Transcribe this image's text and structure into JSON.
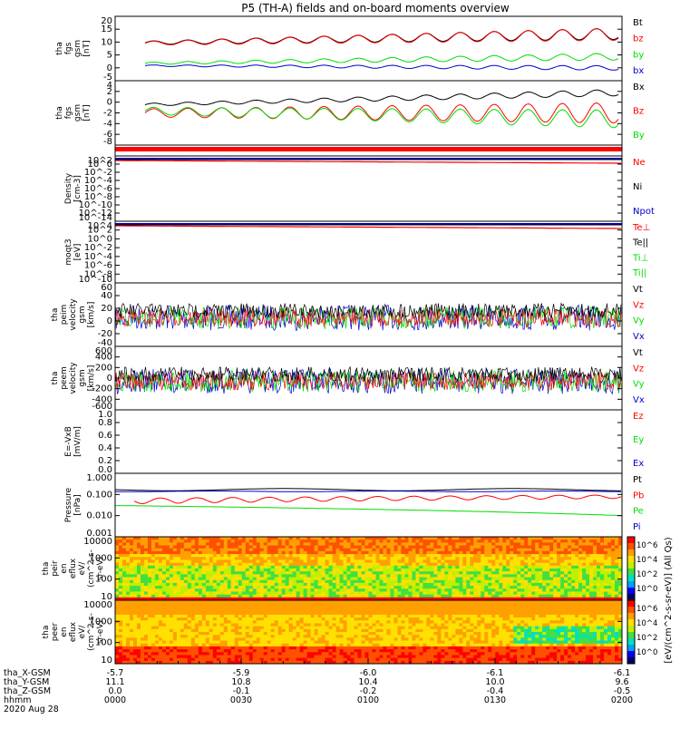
{
  "title": "P5 (TH-A) fields and on-board moments overview",
  "colors": {
    "black": "#000000",
    "red": "#ff0000",
    "green": "#00dd00",
    "blue": "#0000cc",
    "axis": "#000000"
  },
  "panels": [
    {
      "id": "fgs",
      "ylabel": [
        "tha",
        "fgs",
        "gsm",
        "[nT]"
      ],
      "yticks": [
        "20",
        "15",
        "10",
        "5",
        "0",
        "-5"
      ],
      "legend": [
        {
          "label": "Bt",
          "color": "black"
        },
        {
          "label": "bz",
          "color": "red"
        },
        {
          "label": "by",
          "color": "green"
        },
        {
          "label": "bx",
          "color": "blue"
        }
      ]
    },
    {
      "id": "fgl",
      "ylabel": [
        "tha",
        "fgs",
        "gsm",
        "[nT]"
      ],
      "yticks": [
        "4",
        "2",
        "0",
        "-2",
        "-4",
        "-6",
        "-8"
      ],
      "legend": [
        {
          "label": "Bx",
          "color": "black"
        },
        {
          "label": "Bz",
          "color": "red"
        },
        {
          "label": "By",
          "color": "green"
        }
      ]
    },
    {
      "id": "density",
      "ylabel": [
        "Density",
        "[cm-3]"
      ],
      "yticks": [
        "10^2",
        "10^0",
        "10^-2",
        "10^-4",
        "10^-6",
        "10^-8",
        "10^-10",
        "10^-12",
        "10^-14"
      ],
      "legend": [
        {
          "label": "Ne",
          "color": "red"
        },
        {
          "label": "Ni",
          "color": "black"
        },
        {
          "label": "Npot",
          "color": "blue"
        }
      ]
    },
    {
      "id": "temp",
      "ylabel": [
        "moqt3",
        "[eV]"
      ],
      "yticks": [
        "10^4",
        "10^2",
        "10^0",
        "10^-2",
        "10^-4",
        "10^-6",
        "10^-8",
        "10^-10"
      ],
      "legend": [
        {
          "label": "Te⊥",
          "color": "red"
        },
        {
          "label": "Te||",
          "color": "black"
        },
        {
          "label": "Ti⊥",
          "color": "green"
        },
        {
          "label": "Ti||",
          "color": "green"
        }
      ]
    },
    {
      "id": "vi",
      "ylabel": [
        "tha",
        "peim",
        "velocity",
        "gsm",
        "[km/s]"
      ],
      "yticks": [
        "60",
        "40",
        "20",
        "0",
        "-20",
        "-40"
      ],
      "legend": [
        {
          "label": "Vt",
          "color": "black"
        },
        {
          "label": "Vz",
          "color": "red"
        },
        {
          "label": "Vy",
          "color": "green"
        },
        {
          "label": "Vx",
          "color": "blue"
        }
      ]
    },
    {
      "id": "ve",
      "ylabel": [
        "tha",
        "peem",
        "velocity",
        "gsm",
        "[km/s]"
      ],
      "yticks": [
        "600",
        "400",
        "200",
        "0",
        "-200",
        "-400",
        "-600"
      ],
      "legend": [
        {
          "label": "Vt",
          "color": "black"
        },
        {
          "label": "Vz",
          "color": "red"
        },
        {
          "label": "Vy",
          "color": "green"
        },
        {
          "label": "Vx",
          "color": "blue"
        }
      ]
    },
    {
      "id": "efield",
      "ylabel": [
        "E=-VxB",
        "[mV/m]"
      ],
      "yticks": [
        "1.0",
        "0.8",
        "0.6",
        "0.4",
        "0.2",
        "0.0"
      ],
      "legend": [
        {
          "label": "Ez",
          "color": "red"
        },
        {
          "label": "Ey",
          "color": "green"
        },
        {
          "label": "Ex",
          "color": "blue"
        }
      ]
    },
    {
      "id": "pressure",
      "ylabel": [
        "Pressure",
        "[nPa]"
      ],
      "yticks": [
        "1.000",
        "0.100",
        "0.010",
        "0.001"
      ],
      "legend": [
        {
          "label": "Pt",
          "color": "black"
        },
        {
          "label": "Pb",
          "color": "red"
        },
        {
          "label": "Pe",
          "color": "green"
        },
        {
          "label": "Pi",
          "color": "blue"
        }
      ]
    },
    {
      "id": "peir",
      "ylabel": [
        "tha",
        "peir",
        "en",
        "eflux",
        "eV/",
        "(cm^2-s-",
        "sr-eV)"
      ],
      "yticks": [
        "10000",
        "1000",
        "100",
        "10"
      ],
      "legend": []
    },
    {
      "id": "peer",
      "ylabel": [
        "tha",
        "peer",
        "en",
        "eflux",
        "eV/",
        "(cm^2-s-",
        "sr-eV)"
      ],
      "yticks": [
        "10000",
        "1000",
        "100",
        "10"
      ],
      "legend": []
    }
  ],
  "colorbar": {
    "label": "[eV/(cm^2-s-sr-eV)] (All Qs)",
    "ticks": [
      "10^6",
      "10^4",
      "10^2",
      "10^0"
    ]
  },
  "xaxis": {
    "rows": [
      {
        "label": "tha_X-GSM",
        "values": [
          "-5.7",
          "-5.9",
          "-6.0",
          "-6.1",
          "-6.1"
        ]
      },
      {
        "label": "tha_Y-GSM",
        "values": [
          "11.1",
          "10.8",
          "10.4",
          "10.0",
          "9.6"
        ]
      },
      {
        "label": "tha_Z-GSM",
        "values": [
          "0.0",
          "-0.1",
          "-0.2",
          "-0.4",
          "-0.5"
        ]
      },
      {
        "label": "hhmm",
        "values": [
          "0000",
          "0030",
          "0100",
          "0130",
          "0200"
        ]
      }
    ],
    "date": "2020 Aug 28"
  },
  "chart_data": {
    "type": "line",
    "x_time": [
      "0000",
      "0030",
      "0100",
      "0130",
      "0200"
    ],
    "series_summary": {
      "Bt_nT": {
        "start": 11,
        "end": 16
      },
      "bz_nT": {
        "start": 10,
        "end": 15
      },
      "by_nT": {
        "start": 1,
        "end": 5
      },
      "bx_nT": {
        "start": 0,
        "end": -1
      },
      "Pt_nPa": 0.2,
      "Pb_nPa": 0.12,
      "Pe_nPa": 0.02,
      "Pi_nPa": 0.14
    },
    "grid": false,
    "legend_position": "right"
  }
}
